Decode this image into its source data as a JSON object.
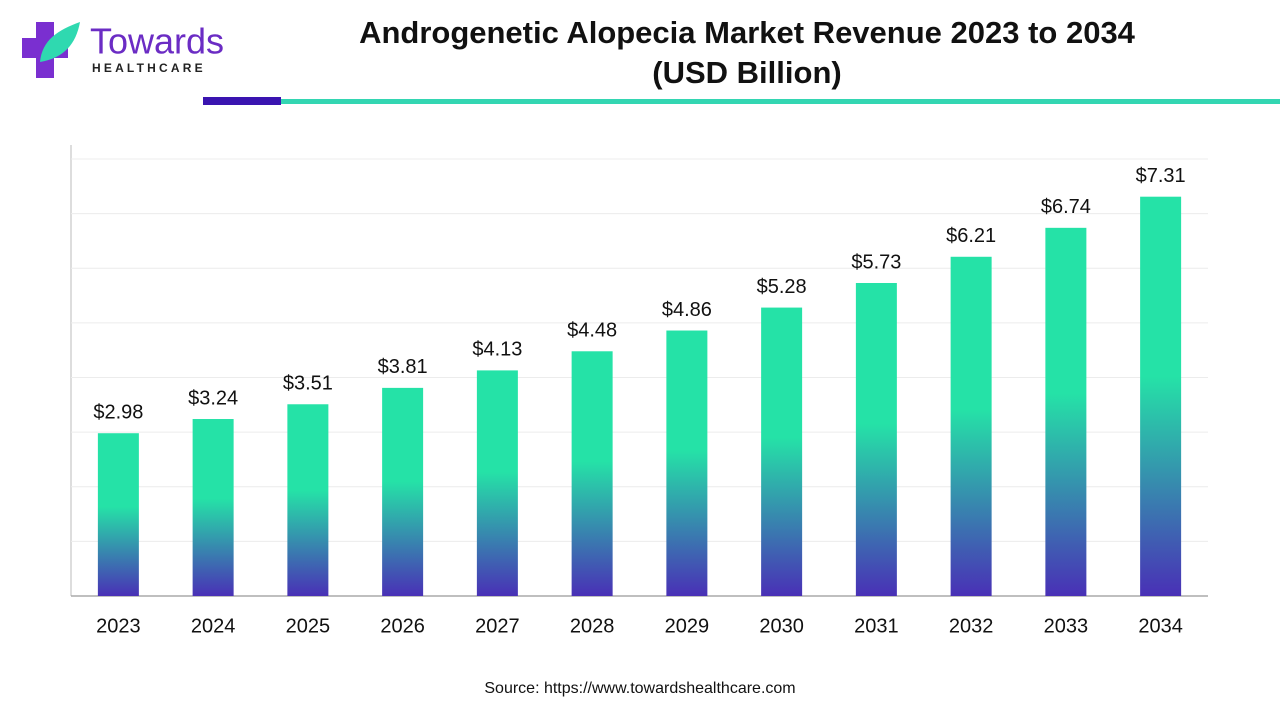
{
  "logo": {
    "name": "Towards",
    "tagline": "HEALTHCARE"
  },
  "chart_data": {
    "type": "bar",
    "title": [
      "Androgenetic Alopecia Market Revenue 2023 to 2034",
      "(USD Billion)"
    ],
    "categories": [
      "2023",
      "2024",
      "2025",
      "2026",
      "2027",
      "2028",
      "2029",
      "2030",
      "2031",
      "2032",
      "2033",
      "2034"
    ],
    "values": [
      2.98,
      3.24,
      3.51,
      3.81,
      4.13,
      4.48,
      4.86,
      5.28,
      5.73,
      6.21,
      6.74,
      7.31
    ],
    "value_labels": [
      "$2.98",
      "$3.24",
      "$3.51",
      "$3.81",
      "$4.13",
      "$4.48",
      "$4.86",
      "$5.28",
      "$5.73",
      "$6.21",
      "$6.74",
      "$7.31"
    ],
    "colors": [
      "#25e2a7",
      "#4930b6"
    ],
    "ylim": [
      0,
      8
    ],
    "yticks": [
      0,
      1,
      2,
      3,
      4,
      5,
      6,
      7,
      8
    ],
    "grid": true,
    "source": "Source: https://www.towardshealthcare.com"
  }
}
